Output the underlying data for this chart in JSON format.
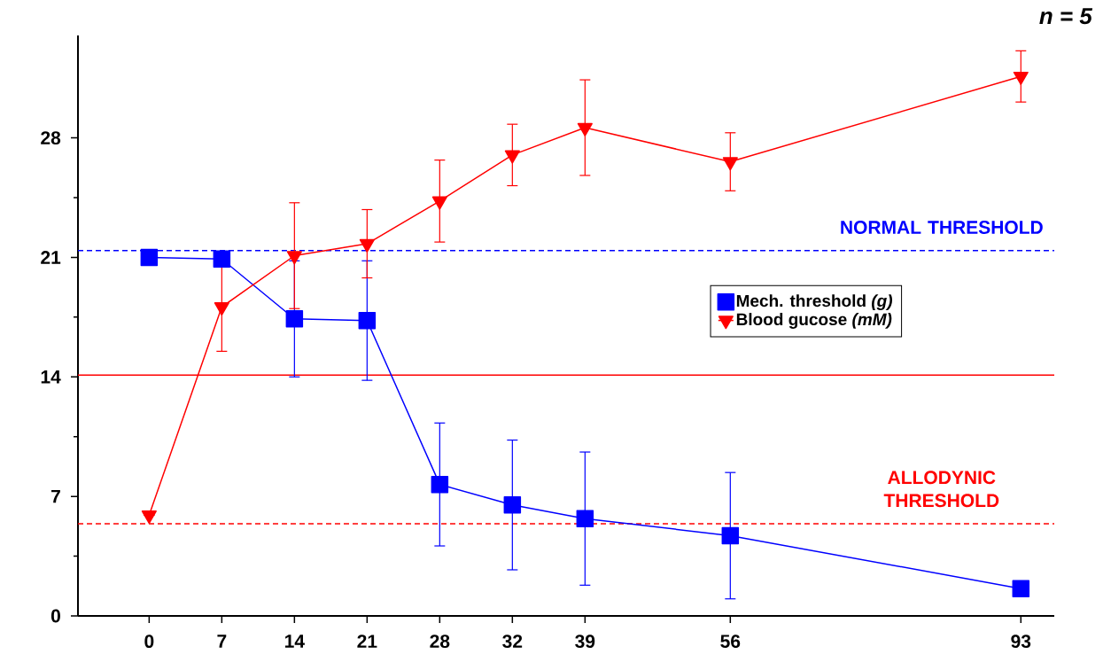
{
  "chart_data": {
    "type": "line",
    "categories": [
      "0",
      "7",
      "14",
      "21",
      "28",
      "32",
      "39",
      null,
      "56",
      null,
      null,
      null,
      "93"
    ],
    "series": [
      {
        "name": "Mech. threshold *(g)*",
        "color": "#0000ff",
        "marker": "square",
        "values": [
          21.0,
          20.9,
          17.4,
          17.3,
          7.7,
          6.5,
          5.7,
          null,
          4.7,
          null,
          null,
          null,
          1.6
        ],
        "errors": [
          null,
          null,
          3.4,
          3.5,
          3.6,
          3.8,
          3.9,
          null,
          3.7,
          null,
          null,
          null,
          null
        ]
      },
      {
        "name": "Blood gucose *(mM)*",
        "color": "#ff0000",
        "marker": "triangle",
        "values": [
          5.9,
          18.1,
          21.1,
          21.8,
          24.3,
          27.0,
          28.6,
          null,
          26.6,
          null,
          null,
          null,
          31.6
        ],
        "errors": [
          null,
          2.6,
          3.1,
          2.0,
          2.4,
          1.8,
          2.8,
          null,
          1.7,
          null,
          null,
          null,
          1.5
        ]
      }
    ],
    "ylim": [
      0,
      34
    ],
    "yticks": [
      0,
      7,
      14,
      21,
      28
    ],
    "ref_lines": [
      {
        "axis": "y",
        "value": 21.4,
        "label": "NORMAL THRESHOLD",
        "color": "#0000ff",
        "line_style": "dashed"
      },
      {
        "axis": "y",
        "value": 14.1,
        "color": "#ff0000",
        "line_style": "solid"
      },
      {
        "axis": "y",
        "value": 5.4,
        "label": "ALLODYNIC THRESHOLD",
        "color": "#ff0000",
        "line_style": "dashed"
      }
    ],
    "annotations": [
      "n = 5"
    ],
    "legend": "right"
  }
}
